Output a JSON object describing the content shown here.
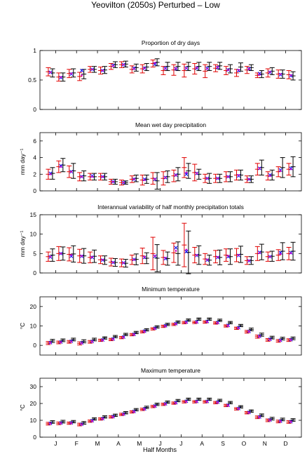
{
  "figure": {
    "title": "Yeovilton (2050s) Perturbed – Low",
    "xlabel": "Half Months",
    "month_labels": [
      "J",
      "F",
      "M",
      "A",
      "M",
      "J",
      "J",
      "A",
      "S",
      "O",
      "N",
      "D"
    ]
  },
  "colors": {
    "red": "#e00000",
    "black": "#000000",
    "blue": "#0000ff",
    "magenta": "#cc00cc"
  },
  "chart_data": [
    {
      "type": "errorbar",
      "title": "Proportion of dry days",
      "ylabel": "",
      "ylim": [
        0,
        1
      ],
      "yticks": [
        0,
        0.5,
        1
      ],
      "ytick_labels": [
        "0",
        "0.5",
        "1"
      ],
      "series": [
        {
          "color": "red",
          "mid": [
            0.64,
            0.55,
            0.61,
            0.56,
            0.68,
            0.66,
            0.73,
            0.76,
            0.68,
            0.69,
            0.78,
            0.66,
            0.67,
            0.66,
            0.69,
            0.65,
            0.7,
            0.66,
            0.62,
            0.67,
            0.58,
            0.62,
            0.6,
            0.59
          ],
          "err": [
            0.07,
            0.07,
            0.07,
            0.07,
            0.05,
            0.06,
            0.05,
            0.05,
            0.06,
            0.07,
            0.06,
            0.07,
            0.09,
            0.11,
            0.09,
            0.11,
            0.06,
            0.07,
            0.06,
            0.06,
            0.04,
            0.07,
            0.07,
            0.07
          ]
        },
        {
          "color": "black",
          "mid": [
            0.62,
            0.55,
            0.62,
            0.6,
            0.68,
            0.67,
            0.76,
            0.77,
            0.71,
            0.72,
            0.8,
            0.73,
            0.73,
            0.73,
            0.73,
            0.73,
            0.74,
            0.69,
            0.72,
            0.71,
            0.6,
            0.65,
            0.6,
            0.57
          ],
          "err": [
            0.07,
            0.07,
            0.07,
            0.08,
            0.05,
            0.06,
            0.05,
            0.05,
            0.06,
            0.06,
            0.06,
            0.07,
            0.07,
            0.07,
            0.07,
            0.07,
            0.06,
            0.07,
            0.07,
            0.05,
            0.06,
            0.06,
            0.07,
            0.07
          ]
        },
        {
          "color": "blue",
          "marker": "x",
          "values": [
            0.63,
            0.54,
            0.6,
            0.66,
            0.68,
            0.66,
            0.75,
            0.76,
            0.7,
            0.7,
            0.77,
            0.7,
            0.69,
            0.7,
            0.7,
            0.7,
            0.71,
            0.67,
            0.66,
            0.69,
            0.61,
            0.63,
            0.59,
            0.57
          ]
        },
        {
          "color": "magenta",
          "marker": "dot",
          "values": [
            0.63,
            0.55,
            0.61,
            0.58,
            0.68,
            0.66,
            0.74,
            0.76,
            0.69,
            0.7,
            0.79,
            0.69,
            0.7,
            0.7,
            0.71,
            0.69,
            0.72,
            0.67,
            0.67,
            0.69,
            0.59,
            0.64,
            0.6,
            0.58
          ]
        }
      ]
    },
    {
      "type": "errorbar",
      "title": "Mean wet day precipitation",
      "ylabel": "mm day⁻¹",
      "ylim": [
        0,
        7
      ],
      "yticks": [
        0,
        2,
        4,
        6
      ],
      "ytick_labels": [
        "0",
        "2",
        "4",
        "6"
      ],
      "series": [
        {
          "color": "red",
          "mid": [
            2.0,
            2.9,
            2.3,
            1.7,
            1.7,
            1.7,
            1.1,
            1.0,
            1.4,
            1.3,
            1.5,
            1.5,
            1.8,
            2.8,
            2.2,
            1.5,
            1.5,
            1.7,
            1.9,
            1.4,
            2.6,
            1.8,
            2.3,
            2.6
          ],
          "err": [
            0.6,
            0.7,
            0.7,
            0.5,
            0.4,
            0.4,
            0.3,
            0.3,
            0.4,
            0.6,
            0.7,
            0.8,
            0.7,
            1.2,
            1.0,
            0.5,
            0.5,
            0.6,
            0.6,
            0.4,
            0.7,
            0.5,
            0.6,
            0.7
          ]
        },
        {
          "color": "black",
          "mid": [
            2.1,
            3.1,
            2.4,
            1.8,
            1.7,
            1.7,
            1.1,
            1.0,
            1.5,
            1.4,
            1.2,
            1.7,
            2.0,
            2.4,
            2.0,
            1.5,
            1.5,
            1.7,
            1.9,
            1.4,
            2.8,
            1.9,
            2.8,
            2.9
          ],
          "err": [
            0.7,
            0.8,
            0.9,
            0.6,
            0.4,
            0.4,
            0.3,
            0.2,
            0.4,
            0.5,
            1.0,
            0.7,
            0.8,
            0.9,
            0.6,
            0.6,
            0.5,
            0.6,
            0.6,
            0.4,
            0.9,
            0.6,
            1.2,
            1.2
          ]
        },
        {
          "color": "blue",
          "marker": "x",
          "values": [
            2.1,
            3.0,
            2.3,
            1.7,
            1.8,
            1.7,
            1.1,
            1.0,
            1.4,
            1.4,
            1.4,
            1.6,
            1.9,
            2.0,
            2.1,
            1.5,
            1.5,
            1.7,
            1.8,
            1.4,
            2.7,
            1.9,
            2.5,
            2.7
          ]
        },
        {
          "color": "magenta",
          "marker": "dot",
          "values": [
            2.0,
            2.9,
            2.3,
            1.7,
            1.7,
            1.7,
            1.1,
            1.0,
            1.4,
            1.3,
            1.4,
            1.6,
            1.9,
            2.2,
            2.1,
            1.5,
            1.5,
            1.7,
            1.9,
            1.4,
            2.7,
            1.8,
            2.4,
            2.6
          ]
        }
      ]
    },
    {
      "type": "errorbar",
      "title": "Interannual variability of half monthly precipitation totals",
      "ylabel": "mm day⁻¹",
      "ylim": [
        0,
        15
      ],
      "yticks": [
        0,
        5,
        10,
        15
      ],
      "ytick_labels": [
        "0",
        "5",
        "10",
        "15"
      ],
      "series": [
        {
          "color": "red",
          "mid": [
            4.2,
            5.0,
            4.8,
            4.4,
            4.0,
            3.4,
            2.8,
            2.6,
            3.4,
            4.4,
            5.0,
            4.0,
            5.2,
            7.2,
            4.6,
            3.6,
            4.2,
            4.6,
            4.6,
            3.2,
            5.0,
            4.2,
            4.6,
            5.0
          ],
          "err": [
            1.2,
            1.8,
            1.7,
            1.7,
            1.4,
            1.0,
            1.0,
            1.0,
            1.2,
            2.0,
            4.2,
            1.8,
            2.5,
            5.6,
            2.0,
            1.4,
            1.6,
            1.6,
            1.7,
            1.0,
            1.8,
            1.2,
            1.4,
            1.6
          ]
        },
        {
          "color": "black",
          "mid": [
            4.6,
            5.0,
            4.9,
            4.4,
            4.3,
            3.3,
            2.7,
            2.5,
            3.5,
            3.8,
            3.8,
            3.7,
            5.0,
            5.3,
            4.6,
            3.3,
            4.0,
            4.2,
            4.8,
            3.2,
            5.4,
            4.3,
            5.6,
            5.6
          ],
          "err": [
            1.6,
            1.7,
            2.1,
            1.9,
            1.6,
            1.1,
            1.0,
            1.0,
            1.4,
            1.4,
            3.5,
            1.7,
            3.0,
            5.5,
            2.4,
            1.3,
            1.9,
            2.0,
            2.1,
            1.0,
            2.0,
            1.3,
            2.2,
            2.3
          ]
        },
        {
          "color": "blue",
          "marker": "x",
          "values": [
            4.1,
            5.0,
            4.3,
            4.3,
            4.0,
            3.3,
            2.7,
            2.6,
            3.5,
            4.0,
            4.3,
            3.7,
            6.5,
            5.5,
            4.5,
            3.3,
            4.0,
            4.2,
            4.5,
            3.1,
            5.3,
            4.2,
            5.2,
            5.2
          ]
        },
        {
          "color": "magenta",
          "marker": "dot",
          "values": [
            4.2,
            5.0,
            4.6,
            4.4,
            4.1,
            3.4,
            2.7,
            2.6,
            3.4,
            4.1,
            4.4,
            3.9,
            5.7,
            6.0,
            4.6,
            3.4,
            4.1,
            4.4,
            4.6,
            3.2,
            5.2,
            4.2,
            4.9,
            5.1
          ]
        }
      ]
    },
    {
      "type": "errorbar",
      "title": "Minimum temperature",
      "ylabel": "°C",
      "ylim": [
        -5,
        25
      ],
      "yticks": [
        0,
        10,
        20
      ],
      "ytick_labels": [
        "0",
        "10",
        "20"
      ],
      "series": [
        {
          "color": "red",
          "mid": [
            1.2,
            1.5,
            1.8,
            1.0,
            1.8,
            2.6,
            3.0,
            4.0,
            5.5,
            7.0,
            8.5,
            9.8,
            10.8,
            11.7,
            11.8,
            12.0,
            11.5,
            10.0,
            8.8,
            7.0,
            4.5,
            2.8,
            2.3,
            2.7
          ],
          "err": [
            0.8,
            0.7,
            0.7,
            0.8,
            0.7,
            0.6,
            0.6,
            0.6,
            0.6,
            0.6,
            0.6,
            0.6,
            0.6,
            0.6,
            0.6,
            0.6,
            0.6,
            0.6,
            0.6,
            0.7,
            0.8,
            0.7,
            0.7,
            0.7
          ]
        },
        {
          "color": "black",
          "mid": [
            2.3,
            2.6,
            3.0,
            2.1,
            3.0,
            3.8,
            4.5,
            5.6,
            6.6,
            8.0,
            9.5,
            10.8,
            12.0,
            13.0,
            13.5,
            13.5,
            12.9,
            11.7,
            10.2,
            8.2,
            5.5,
            4.0,
            3.5,
            3.6
          ],
          "err": [
            0.8,
            0.7,
            0.7,
            0.8,
            0.7,
            0.6,
            0.6,
            0.6,
            0.6,
            0.6,
            0.6,
            0.6,
            0.6,
            0.6,
            0.6,
            0.6,
            0.6,
            0.6,
            0.6,
            0.7,
            0.8,
            0.7,
            0.7,
            0.7
          ]
        },
        {
          "color": "blue",
          "marker": "x",
          "values": [
            1.4,
            1.7,
            2.1,
            1.3,
            2.0,
            2.8,
            3.3,
            4.3,
            5.7,
            7.3,
            8.8,
            10.1,
            11.2,
            12.0,
            12.1,
            12.3,
            11.8,
            10.3,
            9.1,
            7.2,
            4.7,
            3.1,
            2.6,
            2.9
          ]
        },
        {
          "color": "magenta",
          "marker": "dot",
          "values": [
            1.3,
            1.6,
            1.9,
            1.1,
            1.9,
            2.7,
            3.2,
            4.2,
            5.6,
            7.1,
            8.6,
            9.9,
            11.0,
            11.8,
            11.9,
            12.1,
            11.6,
            10.1,
            8.9,
            7.1,
            4.6,
            2.9,
            2.4,
            2.8
          ]
        }
      ]
    },
    {
      "type": "errorbar",
      "title": "Maximum temperature",
      "ylabel": "°C",
      "ylim": [
        0,
        35
      ],
      "yticks": [
        0,
        10,
        20,
        30
      ],
      "ytick_labels": [
        "0",
        "10",
        "20",
        "30"
      ],
      "series": [
        {
          "color": "red",
          "mid": [
            8.0,
            8.2,
            8.3,
            7.5,
            9.5,
            10.8,
            12.0,
            13.5,
            15.0,
            16.5,
            18.2,
            19.5,
            20.2,
            21.0,
            21.0,
            21.0,
            20.5,
            18.8,
            16.8,
            14.5,
            11.8,
            10.0,
            9.3,
            9.0
          ],
          "err": [
            0.8,
            0.8,
            0.7,
            0.8,
            0.7,
            0.7,
            0.7,
            0.7,
            0.7,
            0.7,
            0.7,
            0.7,
            0.7,
            0.7,
            0.7,
            0.7,
            0.7,
            0.7,
            0.7,
            0.7,
            0.8,
            0.8,
            0.8,
            0.8
          ]
        },
        {
          "color": "black",
          "mid": [
            9.0,
            9.2,
            9.2,
            8.5,
            10.8,
            12.0,
            13.0,
            14.5,
            16.3,
            17.7,
            19.5,
            20.8,
            21.7,
            22.5,
            22.5,
            22.5,
            21.8,
            20.5,
            18.0,
            15.5,
            13.0,
            11.0,
            10.5,
            10.2
          ],
          "err": [
            0.8,
            0.8,
            0.7,
            0.8,
            0.7,
            0.7,
            0.7,
            0.7,
            0.7,
            0.7,
            0.7,
            0.7,
            0.7,
            0.7,
            0.7,
            0.7,
            0.7,
            0.7,
            0.7,
            0.7,
            0.8,
            0.8,
            0.8,
            0.8
          ]
        },
        {
          "color": "blue",
          "marker": "x",
          "values": [
            8.2,
            8.4,
            8.5,
            7.7,
            9.8,
            11.0,
            12.2,
            13.7,
            15.3,
            16.8,
            18.5,
            19.8,
            20.5,
            21.3,
            21.2,
            21.2,
            20.8,
            19.0,
            17.0,
            14.7,
            12.0,
            10.2,
            9.5,
            9.2
          ]
        },
        {
          "color": "magenta",
          "marker": "dot",
          "values": [
            8.1,
            8.3,
            8.4,
            7.6,
            9.6,
            10.9,
            12.1,
            13.6,
            15.1,
            16.6,
            18.3,
            19.6,
            20.3,
            21.1,
            21.1,
            21.1,
            20.6,
            18.9,
            16.9,
            14.6,
            11.9,
            10.1,
            9.4,
            9.1
          ]
        }
      ]
    }
  ]
}
